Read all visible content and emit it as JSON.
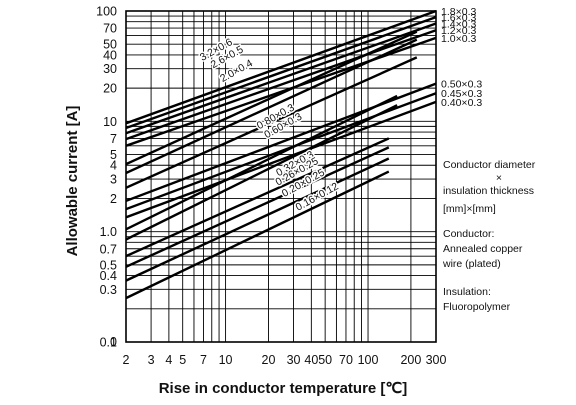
{
  "chart_data": {
    "type": "line",
    "xlabel": "Rise in conductor temperature [℃]",
    "ylabel": "Allowable current [A]",
    "x_scale": "log",
    "y_scale": "log",
    "xlim": [
      2,
      300
    ],
    "ylim": [
      0.1,
      100
    ],
    "grid": true,
    "x_ticks": [
      {
        "v": 2,
        "label": "2"
      },
      {
        "v": 3,
        "label": "3"
      },
      {
        "v": 4,
        "label": "4"
      },
      {
        "v": 5,
        "label": "5"
      },
      {
        "v": 7,
        "label": "7"
      },
      {
        "v": 10,
        "label": "10"
      },
      {
        "v": 20,
        "label": "20"
      },
      {
        "v": 30,
        "label": "30"
      },
      {
        "v": 40,
        "label": "40"
      },
      {
        "v": 50,
        "label": "50"
      },
      {
        "v": 70,
        "label": "70"
      },
      {
        "v": 100,
        "label": "100"
      },
      {
        "v": 200,
        "label": "200"
      },
      {
        "v": 300,
        "label": "300"
      }
    ],
    "y_ticks": [
      {
        "v": 100,
        "label": "100"
      },
      {
        "v": 70,
        "label": "70"
      },
      {
        "v": 50,
        "label": "50"
      },
      {
        "v": 40,
        "label": "40"
      },
      {
        "v": 30,
        "label": "30"
      },
      {
        "v": 20,
        "label": "20"
      },
      {
        "v": 10,
        "label": "10"
      },
      {
        "v": 7,
        "label": "7"
      },
      {
        "v": 5,
        "label": "5"
      },
      {
        "v": 4,
        "label": "4"
      },
      {
        "v": 3,
        "label": "3"
      },
      {
        "v": 2,
        "label": "2"
      },
      {
        "v": 1.0,
        "label": "1.0"
      },
      {
        "v": 0.7,
        "label": "0.7"
      },
      {
        "v": 0.5,
        "label": "0.5"
      },
      {
        "v": 0.4,
        "label": "0.4"
      },
      {
        "v": 0.3,
        "label": "0.3"
      },
      {
        "v": 0.1,
        "label": "0.1"
      }
    ],
    "y_zero_label": "0",
    "x_grid": [
      2,
      3,
      4,
      5,
      6,
      7,
      8,
      9,
      10,
      20,
      30,
      40,
      50,
      60,
      70,
      80,
      90,
      100,
      200,
      300
    ],
    "y_grid": [
      0.2,
      0.3,
      0.4,
      0.5,
      0.6,
      0.7,
      0.8,
      0.9,
      1,
      2,
      3,
      4,
      5,
      6,
      7,
      8,
      9,
      10,
      20,
      30,
      40,
      50,
      60,
      70,
      80,
      90
    ],
    "series": [
      {
        "name": "1.8×0.3",
        "points": [
          [
            2,
            9.6
          ],
          [
            300,
            100
          ]
        ]
      },
      {
        "name": "1.6×0.3",
        "points": [
          [
            2,
            8.7
          ],
          [
            300,
            88
          ]
        ]
      },
      {
        "name": "1.4×0.3",
        "points": [
          [
            2,
            7.8
          ],
          [
            300,
            77
          ]
        ]
      },
      {
        "name": "1.2×0.3",
        "points": [
          [
            2,
            6.9
          ],
          [
            300,
            67
          ]
        ]
      },
      {
        "name": "1.0×0.3",
        "points": [
          [
            2,
            6.0
          ],
          [
            300,
            57
          ]
        ]
      },
      {
        "name": "3.2×0.6",
        "points": [
          [
            2,
            4.1
          ],
          [
            220,
            65
          ]
        ]
      },
      {
        "name": "2.6×0.5",
        "points": [
          [
            2,
            3.4
          ],
          [
            220,
            55
          ]
        ]
      },
      {
        "name": "2.0×0.4",
        "points": [
          [
            2,
            2.5
          ],
          [
            220,
            38
          ]
        ]
      },
      {
        "name": "0.50×0.3",
        "points": [
          [
            2,
            1.9
          ],
          [
            300,
            22
          ]
        ]
      },
      {
        "name": "0.45×0.3",
        "points": [
          [
            2,
            1.6
          ],
          [
            300,
            18
          ]
        ]
      },
      {
        "name": "0.40×0.3",
        "points": [
          [
            2,
            1.35
          ],
          [
            300,
            15
          ]
        ]
      },
      {
        "name": "0.80×0.3",
        "points": [
          [
            2,
            1.05
          ],
          [
            160,
            17
          ]
        ]
      },
      {
        "name": "0.60×0.3",
        "points": [
          [
            2,
            0.85
          ],
          [
            160,
            14
          ]
        ]
      },
      {
        "name": "0.32×0.3",
        "points": [
          [
            2,
            0.6
          ],
          [
            140,
            7
          ]
        ]
      },
      {
        "name": "0.26×0.25",
        "points": [
          [
            2,
            0.48
          ],
          [
            140,
            5.8
          ]
        ]
      },
      {
        "name": "0.20×0.25",
        "points": [
          [
            2,
            0.36
          ],
          [
            140,
            4.6
          ]
        ]
      },
      {
        "name": "0.16×0.12",
        "points": [
          [
            2,
            0.25
          ],
          [
            140,
            3.5
          ]
        ]
      }
    ],
    "annotations": [
      {
        "text": "3.2×0.6",
        "at": [
          8.8,
          42
        ]
      },
      {
        "text": "2.6×0.5",
        "at": [
          10.5,
          36
        ]
      },
      {
        "text": "2.0×0.4",
        "at": [
          12.2,
          27
        ]
      },
      {
        "text": "0.80×0.3",
        "at": [
          23,
          10.4
        ]
      },
      {
        "text": "0.60×0.3",
        "at": [
          26,
          8.6
        ]
      },
      {
        "text": "0.32×0.3",
        "at": [
          31.5,
          3.9
        ]
      },
      {
        "text": "0.26×0.25",
        "at": [
          32.5,
          3.3
        ]
      },
      {
        "text": "0.20×0.25",
        "at": [
          36,
          2.6
        ]
      },
      {
        "text": "0.16×0.12",
        "at": [
          45,
          1.95
        ]
      }
    ],
    "legend_placement": "right"
  },
  "notes": {
    "dimension_line1": "Conductor diameter",
    "dimension_cross": "×",
    "dimension_line2": "insulation thickness",
    "dimension_line3": "[mm]×[mm]",
    "conductor_line1": "Conductor:",
    "conductor_line2": "Annealed copper",
    "conductor_line3": "wire (plated)",
    "insulation_line1": "Insulation:",
    "insulation_line2": "Fluoropolymer"
  }
}
